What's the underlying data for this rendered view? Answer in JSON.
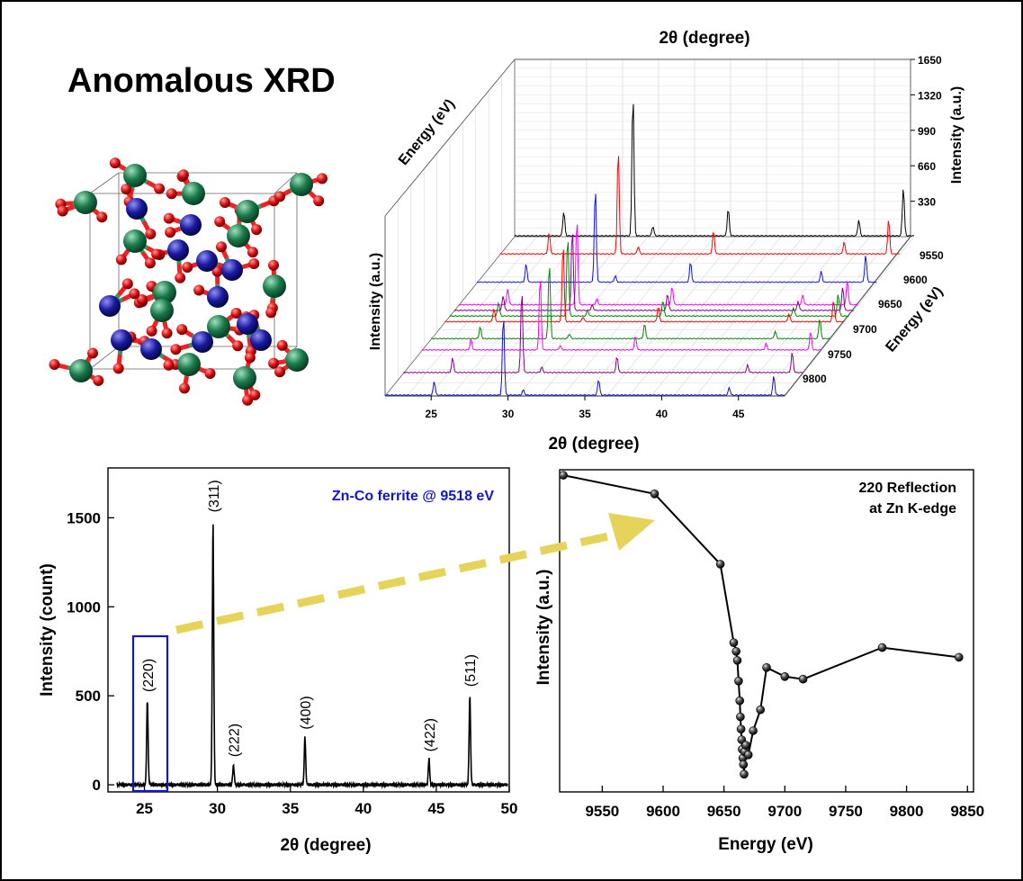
{
  "title": "Anomalous XRD",
  "colors": {
    "zn": "#1a7a4a",
    "co": "#1a1aa0",
    "oxygen": "#dd1111",
    "bond_green": "#2a9a5a",
    "bond_red": "#ee2222",
    "arrow": "#e6d35a",
    "box": "#1414c8",
    "annotation": "#1414c8"
  },
  "chart_data": [
    {
      "id": "waterfall",
      "type": "line",
      "title": "",
      "xlabel": "2θ (degree)",
      "xlabel_top": "2θ (degree)",
      "ylabel": "Intensity (a.u.)",
      "zlabel": "Energy (eV)",
      "right_ylabel": "Intensity (a.u.)",
      "right_ylabel_bottom": "Energy (eV)",
      "xlim": [
        22,
        48
      ],
      "x_ticks": [
        25,
        30,
        35,
        40,
        45
      ],
      "y_ticks": [
        330,
        660,
        990,
        1320,
        1650
      ],
      "energy_ticks": [
        9550,
        9600,
        9650,
        9700,
        9750,
        9800
      ],
      "peak_positions": [
        25.2,
        29.7,
        31.0,
        35.9,
        44.4,
        47.3
      ],
      "series": [
        {
          "energy": 9518,
          "color": "#000000",
          "peak_heights": [
            230,
            1350,
            90,
            260,
            150,
            460
          ]
        },
        {
          "energy": 9550,
          "color": "#ff0000",
          "peak_heights": [
            200,
            1000,
            70,
            220,
            110,
            330
          ]
        },
        {
          "energy": 9600,
          "color": "#1010ee",
          "peak_heights": [
            170,
            900,
            60,
            190,
            100,
            260
          ]
        },
        {
          "energy": 9640,
          "color": "#ff00ff",
          "peak_heights": [
            150,
            820,
            55,
            170,
            90,
            230
          ]
        },
        {
          "energy": 9650,
          "color": "#880088",
          "peak_heights": [
            140,
            780,
            50,
            160,
            85,
            220
          ]
        },
        {
          "energy": 9660,
          "color": "#008800",
          "peak_heights": [
            130,
            760,
            50,
            150,
            80,
            210
          ]
        },
        {
          "energy": 9670,
          "color": "#ff0000",
          "peak_heights": [
            120,
            740,
            45,
            145,
            75,
            200
          ]
        },
        {
          "energy": 9700,
          "color": "#008800",
          "peak_heights": [
            110,
            720,
            45,
            140,
            70,
            190
          ]
        },
        {
          "energy": 9720,
          "color": "#ff00ff",
          "peak_heights": [
            100,
            700,
            40,
            130,
            60,
            170
          ]
        },
        {
          "energy": 9760,
          "color": "#880088",
          "peak_heights": [
            140,
            780,
            50,
            150,
            70,
            190
          ]
        },
        {
          "energy": 9800,
          "color": "#1010cc",
          "peak_heights": [
            130,
            760,
            50,
            150,
            70,
            180
          ]
        }
      ]
    },
    {
      "id": "xrd",
      "type": "line",
      "title": "",
      "xlabel": "2θ (degree)",
      "ylabel": "Intensity (count)",
      "xlim": [
        22.5,
        50
      ],
      "ylim": [
        -40,
        1780
      ],
      "x_ticks": [
        25,
        30,
        35,
        40,
        45,
        50
      ],
      "y_ticks": [
        0,
        500,
        1000,
        1500
      ],
      "annotation": "Zn-Co ferrite @ 9518 eV",
      "peaks": [
        {
          "x": 25.2,
          "y": 480,
          "label": "(220)"
        },
        {
          "x": 29.7,
          "y": 1490,
          "label": "(311)"
        },
        {
          "x": 31.1,
          "y": 115,
          "label": "(222)"
        },
        {
          "x": 36.0,
          "y": 270,
          "label": "(400)"
        },
        {
          "x": 44.5,
          "y": 145,
          "label": "(422)"
        },
        {
          "x": 47.3,
          "y": 510,
          "label": "(511)"
        }
      ]
    },
    {
      "id": "reflection",
      "type": "line",
      "title": "",
      "xlabel": "Energy (eV)",
      "ylabel": "Intensity (a.u.)",
      "xlim": [
        9515,
        9855
      ],
      "ylim": [
        0,
        1.0
      ],
      "x_ticks": [
        9550,
        9600,
        9650,
        9700,
        9750,
        9800,
        9850
      ],
      "annotation_line1": "220 Reflection",
      "annotation_line2": "at Zn K-edge",
      "x": [
        9518,
        9593,
        9647,
        9658,
        9660,
        9661,
        9662,
        9663,
        9663.5,
        9664,
        9664.5,
        9665,
        9665.5,
        9666,
        9666.5,
        9667,
        9668,
        9670,
        9674,
        9680,
        9685,
        9700,
        9715,
        9780,
        9843
      ],
      "y": [
        0.983,
        0.925,
        0.707,
        0.463,
        0.436,
        0.408,
        0.344,
        0.283,
        0.233,
        0.195,
        0.162,
        0.132,
        0.105,
        0.085,
        0.055,
        0.125,
        0.145,
        0.115,
        0.19,
        0.255,
        0.386,
        0.358,
        0.35,
        0.448,
        0.418
      ]
    }
  ]
}
